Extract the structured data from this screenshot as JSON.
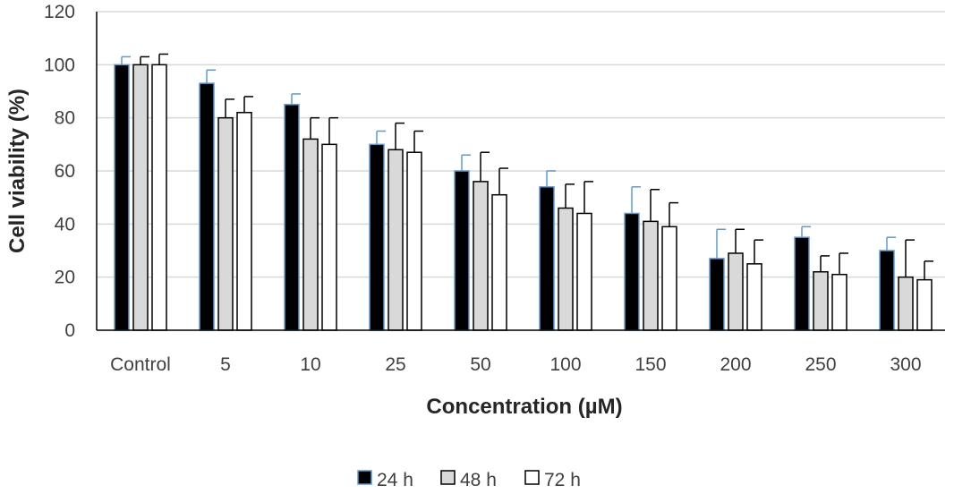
{
  "chart_data": {
    "type": "bar",
    "title": "",
    "xlabel": "Concentration (µM)",
    "ylabel": "Cell viability (%)",
    "ylim": [
      0,
      120
    ],
    "yticks": [
      0,
      20,
      40,
      60,
      80,
      100,
      120
    ],
    "grid": true,
    "legend_position": "bottom",
    "categories": [
      "Control",
      "5",
      "10",
      "25",
      "50",
      "100",
      "150",
      "200",
      "250",
      "300"
    ],
    "series": [
      {
        "name": "24 h",
        "color": "#000000",
        "edge_color": "#5b9bd5",
        "values": [
          100,
          93,
          85,
          70,
          60,
          54,
          44,
          27,
          35,
          30
        ],
        "errors": [
          3,
          5,
          4,
          5,
          6,
          6,
          10,
          11,
          4,
          5
        ]
      },
      {
        "name": "48 h",
        "color": "#d9d9d9",
        "edge_color": "#000000",
        "values": [
          100,
          80,
          72,
          68,
          56,
          46,
          41,
          29,
          22,
          20
        ],
        "errors": [
          3,
          7,
          8,
          10,
          11,
          9,
          12,
          9,
          6,
          14
        ]
      },
      {
        "name": "72 h",
        "color": "#ffffff",
        "edge_color": "#000000",
        "values": [
          100,
          82,
          70,
          67,
          51,
          44,
          39,
          25,
          21,
          19
        ],
        "errors": [
          4,
          6,
          10,
          8,
          10,
          12,
          9,
          9,
          8,
          7
        ]
      }
    ]
  }
}
